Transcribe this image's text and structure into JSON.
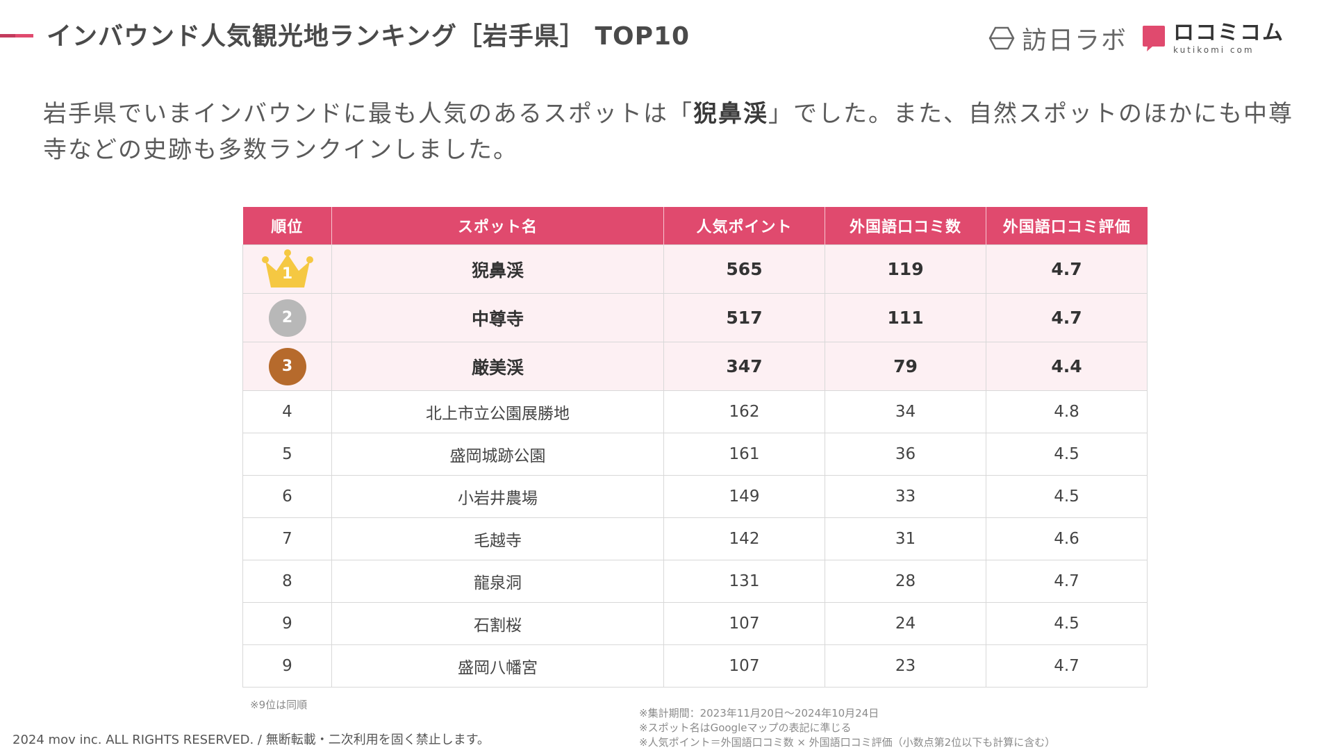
{
  "header": {
    "title": "インバウンド人気観光地ランキング［岩手県］ TOP10",
    "logo_hounichi": "訪日ラボ",
    "logo_kutikomi_main": "ロコミコム",
    "logo_kutikomi_sub": "kutikomi com"
  },
  "intro": {
    "part1": "岩手県でいまインバウンドに最も人気のあるスポットは「",
    "emphasis": "猊鼻渓",
    "part2": "」でした。また、自然スポットのほかにも中尊寺などの史跡も多数ランクインしました。"
  },
  "table": {
    "headers": [
      "順位",
      "スポット名",
      "人気ポイント",
      "外国語口コミ数",
      "外国語口コミ評価"
    ],
    "rows": [
      {
        "rank": "1",
        "name": "猊鼻渓",
        "points": "565",
        "reviews": "119",
        "rating": "4.7"
      },
      {
        "rank": "2",
        "name": "中尊寺",
        "points": "517",
        "reviews": "111",
        "rating": "4.7"
      },
      {
        "rank": "3",
        "name": "厳美渓",
        "points": "347",
        "reviews": "79",
        "rating": "4.4"
      },
      {
        "rank": "4",
        "name": "北上市立公園展勝地",
        "points": "162",
        "reviews": "34",
        "rating": "4.8"
      },
      {
        "rank": "5",
        "name": "盛岡城跡公園",
        "points": "161",
        "reviews": "36",
        "rating": "4.5"
      },
      {
        "rank": "6",
        "name": "小岩井農場",
        "points": "149",
        "reviews": "33",
        "rating": "4.5"
      },
      {
        "rank": "7",
        "name": "毛越寺",
        "points": "142",
        "reviews": "31",
        "rating": "4.6"
      },
      {
        "rank": "8",
        "name": "龍泉洞",
        "points": "131",
        "reviews": "28",
        "rating": "4.7"
      },
      {
        "rank": "9",
        "name": "石割桜",
        "points": "107",
        "reviews": "24",
        "rating": "4.5"
      },
      {
        "rank": "9",
        "name": "盛岡八幡宮",
        "points": "107",
        "reviews": "23",
        "rating": "4.7"
      }
    ]
  },
  "footer": {
    "tie_note": "※9位は同順",
    "copyright": "2024 mov inc. ALL RIGHTS RESERVED. / 無断転載・二次利用を固く禁止します。",
    "notes": [
      "※集計期間：2023年11月20日〜2024年10月24日",
      "※スポット名はGoogleマップの表記に準じる",
      "※人気ポイント＝外国語口コミ数 × 外国語口コミ評価（小数点第2位以下も計算に含む）"
    ]
  },
  "colors": {
    "accent": "#e04a6e",
    "top3_background": "#fdf0f3",
    "gold": "#f5c842",
    "silver": "#b8b8b8",
    "bronze": "#b66a2c"
  },
  "icons": {
    "rank1": "gold-crown-icon",
    "rank2": "silver-medal-icon",
    "rank3": "bronze-medal-icon"
  }
}
